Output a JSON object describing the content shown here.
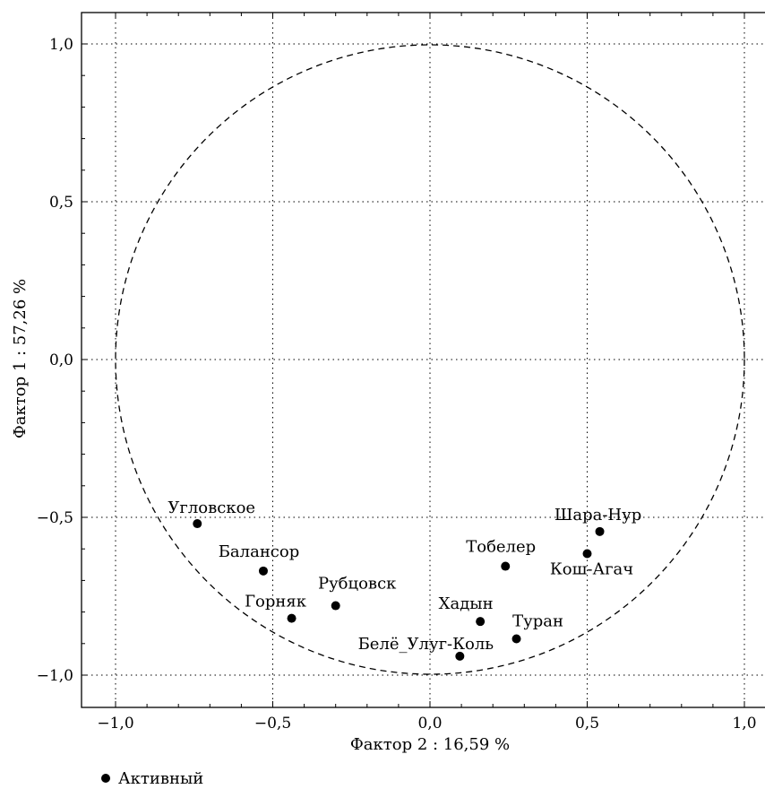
{
  "chart_data": {
    "type": "scatter",
    "xlabel": "Фактор 2 : 16,59 %",
    "ylabel": "Фактор 1 : 57,26 %",
    "xlim": [
      -1.1,
      1.1
    ],
    "ylim": [
      -1.1,
      1.1
    ],
    "x_ticks": [
      -1.0,
      -0.5,
      0.0,
      0.5,
      1.0
    ],
    "y_ticks": [
      -1.0,
      -0.5,
      0.0,
      0.5,
      1.0
    ],
    "x_tick_labels": [
      "−1,0",
      "−0,5",
      "0,0",
      "0,5",
      "1,0"
    ],
    "y_tick_labels": [
      "−1,0",
      "−0,5",
      "0,0",
      "0,5",
      "1,0"
    ],
    "grid": "dotted",
    "unit_circle": true,
    "legend": {
      "placement": "bottom-left",
      "entries": [
        "Активный"
      ]
    },
    "points": [
      {
        "label": "Угловское",
        "x": -0.74,
        "y": -0.52
      },
      {
        "label": "Балансор",
        "x": -0.53,
        "y": -0.67
      },
      {
        "label": "Горняк",
        "x": -0.44,
        "y": -0.82
      },
      {
        "label": "Рубцовск",
        "x": -0.3,
        "y": -0.78
      },
      {
        "label": "Тобелер",
        "x": 0.24,
        "y": -0.655
      },
      {
        "label": "Шара-Нур",
        "x": 0.54,
        "y": -0.545
      },
      {
        "label": "Кош-Агач",
        "x": 0.5,
        "y": -0.615
      },
      {
        "label": "Хадын",
        "x": 0.16,
        "y": -0.83
      },
      {
        "label": "Туран",
        "x": 0.275,
        "y": -0.885
      },
      {
        "label": "Белё_Улуг-Коль",
        "x": 0.095,
        "y": -0.94
      }
    ]
  }
}
